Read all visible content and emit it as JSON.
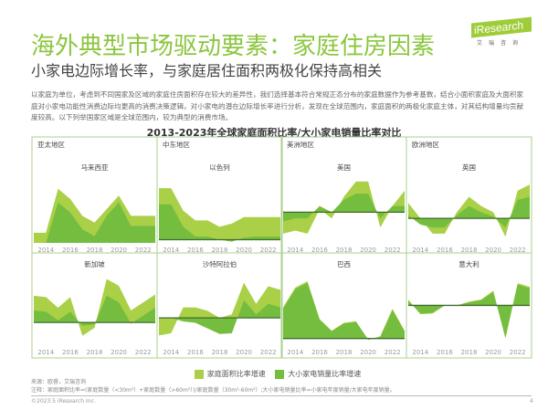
{
  "header": {
    "title": "海外典型市场驱动要素：家庭住房因素",
    "subtitle": "小家电边际增长率，与家庭居住面积两极化保持高相关",
    "logo_text": "iResearch",
    "logo_cn": "艾瑞咨询"
  },
  "body_text": "以家庭为单位，考虑到不同国家及区域的家庭住房面积存在较大的差异性，我们选择基本符合常规正态分布的家庭数据作为参考基数，结合小面积家庭及大面积家庭对小家电功能性消费边际均更高的消费决策逻辑，对小家电的潜在边际增长率进行分析，发现在全球范围内，家庭面积的两极化家庭主体，对其结构增量均贡献度较高。以下列举国家区域是全球范围内，较为典型的消费市场。",
  "colors": {
    "title": "#8cc63f",
    "area_ratio": "#a9d046",
    "appliance_ratio": "#74bd3f",
    "baseline": "#3f6b2a",
    "border": "#a8d08d"
  },
  "chart_data": {
    "type": "area",
    "title": "2013-2023年全球家庭面积比率/大小家电销量比率对比",
    "x": [
      2013,
      2014,
      2015,
      2016,
      2017,
      2018,
      2019,
      2020,
      2021,
      2022,
      2023
    ],
    "x_ticks": [
      "2014",
      "2016",
      "2018",
      "2020",
      "2022"
    ],
    "legend": [
      "家庭面积比率增速",
      "大小家电销量比率增速"
    ],
    "legend_placement": "bottom",
    "note": "y values are relative estimates; no y-axis printed",
    "panels": [
      {
        "region": "亚太地区",
        "country": "马来西亚",
        "ylim": [
          0,
          10
        ],
        "series": [
          {
            "name": "家庭面积比率增速",
            "values": [
              1.5,
              1.5,
              8,
              6.5,
              4,
              3,
              5,
              7,
              4,
              4,
              4
            ]
          },
          {
            "name": "大小家电销量比率增速",
            "values": [
              0,
              0,
              6,
              4.5,
              2,
              1,
              4,
              6,
              2.5,
              2.5,
              2.5
            ]
          }
        ]
      },
      {
        "region": "中东地区",
        "country": "以色列",
        "ylim": [
          -0.5,
          10
        ],
        "series": [
          {
            "name": "家庭面积比率增速",
            "values": [
              8,
              8,
              4.5,
              3,
              3,
              2,
              2.5,
              3.5,
              3.5,
              3.5,
              3.5
            ]
          },
          {
            "name": "大小家电销量比率增速",
            "values": [
              5.5,
              5.5,
              2,
              0.5,
              0.5,
              0,
              -0.3,
              0.3,
              0.5,
              0.5,
              0.5
            ]
          }
        ]
      },
      {
        "region": "美洲地区",
        "country": "美国",
        "ylim": [
          -5,
          6
        ],
        "series": [
          {
            "name": "家庭面积比率增速",
            "values": [
              -3.5,
              -3,
              -3.5,
              0.5,
              -1,
              2.5,
              5,
              5,
              -2.5,
              1,
              3.5
            ]
          },
          {
            "name": "大小家电销量比率增速",
            "values": [
              -1.5,
              -1,
              -1,
              1,
              0,
              2,
              3,
              3,
              -1,
              1,
              1
            ]
          }
        ]
      },
      {
        "region": "欧洲地区",
        "country": "英国",
        "ylim": [
          -4,
          7
        ],
        "series": [
          {
            "name": "家庭面积比率增速",
            "values": [
              2.5,
              0,
              -2.5,
              -2.5,
              1,
              3.5,
              2,
              1,
              -3,
              4.5,
              5.5
            ]
          },
          {
            "name": "大小家电销量比率增速",
            "values": [
              0.5,
              -1,
              -1.5,
              -1.5,
              0.5,
              2,
              1,
              0.3,
              -1.5,
              3,
              3.5
            ]
          }
        ]
      },
      {
        "region": "",
        "country": "新加坡",
        "ylim": [
          -3,
          7
        ],
        "series": [
          {
            "name": "家庭面积比率增速",
            "values": [
              4,
              3.8,
              2.2,
              3.8,
              -2,
              -0.8,
              6.5,
              5.5,
              1.8,
              3,
              4.2
            ]
          },
          {
            "name": "大小家电销量比率增速",
            "values": [
              1.8,
              1.6,
              0.3,
              1.6,
              -0.5,
              -0.3,
              4,
              3,
              -0.2,
              1,
              2.2
            ]
          }
        ]
      },
      {
        "region": "",
        "country": "沙特阿拉伯",
        "ylim": [
          -3.5,
          6
        ],
        "series": [
          {
            "name": "家庭面积比率增速",
            "values": [
              -2.5,
              -2.2,
              1.5,
              1.5,
              1,
              0,
              0.5,
              5,
              2,
              4.5,
              4
            ]
          },
          {
            "name": "大小家电销量比率增速",
            "values": [
              0,
              0,
              -0.5,
              -0.7,
              -1.5,
              -2.3,
              -2.2,
              2.5,
              0.5,
              2,
              1.5
            ]
          }
        ]
      },
      {
        "region": "",
        "country": "巴西",
        "ylim": [
          -0.5,
          8
        ],
        "series": [
          {
            "name": "家庭面积比率增速",
            "values": [
              4,
              6.5,
              7.3,
              2.5,
              1,
              2,
              2.2,
              -0.2,
              0.3,
              3.8,
              1
            ]
          },
          {
            "name": "大小家电销量比率增速",
            "values": [
              3.8,
              6.3,
              7.1,
              2.4,
              0.9,
              1.9,
              2.1,
              -0.1,
              0.2,
              3.6,
              0.9
            ]
          }
        ]
      },
      {
        "region": "",
        "country": "意大利",
        "ylim": [
          -5,
          4
        ],
        "series": [
          {
            "name": "家庭面积比率增速",
            "values": [
              0.8,
              -1.2,
              -1.1,
              0,
              0,
              0.5,
              0.8,
              2,
              -4.5,
              3,
              2.5
            ]
          },
          {
            "name": "大小家电销量比率增速",
            "values": [
              0.6,
              -1.1,
              -1,
              0,
              0,
              0.4,
              0.7,
              1.8,
              -4.3,
              2.8,
              2.3
            ]
          }
        ]
      }
    ]
  },
  "footer": {
    "source": "来源：欧睿，艾瑞咨询",
    "note": "注释：家庭面积比率=(家庭数量（<30m²）+家庭数量（>60m²）)/家庭数量（30m²-60m²）;大小家电销量比率=小家电年度销量/大家电年度销量。",
    "copyright": "©2023.5 iResearch Inc.",
    "page": "4"
  }
}
